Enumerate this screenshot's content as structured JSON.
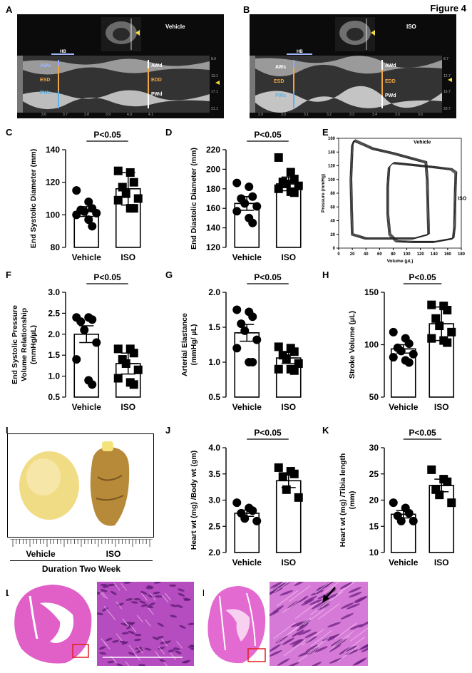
{
  "figure_title": "Figure 4",
  "panels": {
    "A": {
      "letter": "A",
      "condition": "Vehicle",
      "hb": "HB",
      "labels": [
        "AWs",
        "ESD",
        "PWs",
        "AWd",
        "EDD",
        "PWd"
      ],
      "x_ticks": [
        "3.6",
        "3.7",
        "3.8",
        "3.9",
        "4.0",
        "4.1"
      ],
      "depth_ticks": [
        "8.0",
        "13.1",
        "17.1",
        "21.1"
      ]
    },
    "B": {
      "letter": "B",
      "condition": "ISO",
      "hb": "HB",
      "labels": [
        "AWs",
        "ESD",
        "PWs",
        "AWd",
        "EDD",
        "PWd"
      ],
      "x_ticks": [
        "2.9",
        "3.0",
        "3.1",
        "3.2",
        "3.3",
        "3.4",
        "3.5",
        "3.6"
      ],
      "depth_ticks": [
        "8.7",
        "12.7",
        "16.7",
        "20.7"
      ]
    },
    "I": {
      "letter": "I",
      "labels": [
        "Vehicle",
        "ISO"
      ],
      "caption": "Duration Two Week"
    },
    "L": {
      "letter": "L"
    },
    "M": {
      "letter": "M"
    }
  },
  "colors": {
    "vehicle_marker": "#000000",
    "iso_marker": "#000000",
    "echo_bg": "#0b0b0b",
    "aw_label": "#9fb6ff",
    "esd_label": "#f2a640",
    "pw_label": "#58b4e8",
    "he_pink": "#e060c8",
    "he_purple": "#8a2fa6",
    "roi_box": "#e02020"
  },
  "chart_data": [
    {
      "id": "C",
      "type": "scatter",
      "letter": "C",
      "ylabel": "End Systolic Diameter (mm)",
      "categories": [
        "Vehicle",
        "ISO"
      ],
      "ylim": [
        80,
        140
      ],
      "yticks": [
        80,
        100,
        120,
        140
      ],
      "sig": "P<0.05",
      "series": [
        {
          "name": "Vehicle",
          "marker": "circle",
          "mean": 102,
          "err": 3,
          "values": [
            115,
            108,
            104,
            103,
            102,
            101,
            100,
            97,
            93
          ]
        },
        {
          "name": "ISO",
          "marker": "square",
          "mean": 116,
          "err": 10,
          "values": [
            127,
            126,
            120,
            117,
            113,
            110,
            109,
            104,
            104
          ]
        }
      ]
    },
    {
      "id": "D",
      "type": "scatter",
      "letter": "D",
      "ylabel": "End Diastolic Diameter (mm)",
      "categories": [
        "Vehicle",
        "ISO"
      ],
      "ylim": [
        120,
        220
      ],
      "yticks": [
        120,
        140,
        160,
        180,
        200,
        220
      ],
      "sig": "P<0.05",
      "series": [
        {
          "name": "Vehicle",
          "marker": "circle",
          "mean": 165,
          "err": 7,
          "values": [
            186,
            182,
            172,
            170,
            165,
            162,
            157,
            150,
            145
          ]
        },
        {
          "name": "ISO",
          "marker": "square",
          "mean": 185,
          "err": 7,
          "values": [
            212,
            197,
            190,
            187,
            185,
            183,
            180,
            177,
            176
          ]
        }
      ]
    },
    {
      "id": "E",
      "type": "line",
      "letter": "E",
      "xlabel": "Volume (µL)",
      "ylabel": "Pressure (mmHg)",
      "xlim": [
        0,
        180
      ],
      "ylim": [
        0,
        160
      ],
      "xticks": [
        0,
        20,
        40,
        60,
        80,
        100,
        120,
        140,
        160,
        180
      ],
      "yticks": [
        0,
        20,
        40,
        60,
        80,
        100,
        120,
        140,
        160
      ],
      "series": [
        {
          "name": "Vehicle",
          "loops": 5,
          "points": [
            [
              20,
              20
            ],
            [
              19,
              55
            ],
            [
              18,
              100
            ],
            [
              20,
              150
            ],
            [
              23,
              157
            ],
            [
              50,
              145
            ],
            [
              80,
              138
            ],
            [
              110,
              130
            ],
            [
              128,
              125
            ],
            [
              130,
              100
            ],
            [
              131,
              60
            ],
            [
              132,
              20
            ],
            [
              110,
              14
            ],
            [
              70,
              14
            ],
            [
              40,
              14
            ],
            [
              20,
              20
            ]
          ]
        },
        {
          "name": "ISO",
          "loops": 5,
          "points": [
            [
              75,
              20
            ],
            [
              72,
              50
            ],
            [
              72,
              90
            ],
            [
              74,
              118
            ],
            [
              80,
              124
            ],
            [
              110,
              121
            ],
            [
              140,
              118
            ],
            [
              165,
              115
            ],
            [
              172,
              110
            ],
            [
              171,
              80
            ],
            [
              170,
              30
            ],
            [
              168,
              14
            ],
            [
              140,
              9
            ],
            [
              110,
              9
            ],
            [
              85,
              10
            ],
            [
              75,
              20
            ]
          ]
        }
      ]
    },
    {
      "id": "F",
      "type": "scatter",
      "letter": "F",
      "ylabel": "End Systolic Pressure Volume Relationship (mmHg/µL)",
      "ylabel_lines": [
        "End Systolic Pressure",
        "Volume Relationship",
        "(mmHg/µL)"
      ],
      "categories": [
        "Vehicle",
        "ISO"
      ],
      "ylim": [
        0.5,
        3.0
      ],
      "yticks": [
        0.5,
        1.0,
        1.5,
        2.0,
        2.5,
        3.0
      ],
      "sig": "P<0.05",
      "series": [
        {
          "name": "Vehicle",
          "marker": "circle",
          "mean": 2.0,
          "err": 0.2,
          "values": [
            2.4,
            2.4,
            2.35,
            2.3,
            2.1,
            1.8,
            1.4,
            0.9,
            0.8
          ]
        },
        {
          "name": "ISO",
          "marker": "square",
          "mean": 1.3,
          "err": 0.25,
          "values": [
            1.65,
            1.65,
            1.55,
            1.4,
            1.3,
            1.15,
            0.95,
            0.85,
            0.8
          ]
        }
      ]
    },
    {
      "id": "G",
      "type": "scatter",
      "letter": "G",
      "ylabel": "Arterial Elastance (mmHg/ µL)",
      "ylabel_lines": [
        "Arterial Elastance",
        "(mmHg/ µL)"
      ],
      "categories": [
        "Vehicle",
        "ISO"
      ],
      "ylim": [
        0.5,
        2.0
      ],
      "yticks": [
        0.5,
        1.0,
        1.5,
        2.0
      ],
      "sig": "P<0.05",
      "series": [
        {
          "name": "Vehicle",
          "marker": "circle",
          "mean": 1.42,
          "err": 0.12,
          "values": [
            1.75,
            1.72,
            1.65,
            1.55,
            1.45,
            1.32,
            1.2,
            1.0,
            1.0
          ]
        },
        {
          "name": "ISO",
          "marker": "square",
          "mean": 1.06,
          "err": 0.08,
          "values": [
            1.22,
            1.2,
            1.15,
            1.1,
            1.05,
            0.98,
            0.9,
            0.9,
            0.88
          ]
        }
      ]
    },
    {
      "id": "H",
      "type": "scatter",
      "letter": "H",
      "ylabel": "Stroke Volume (µL)",
      "categories": [
        "Vehicle",
        "ISO"
      ],
      "ylim": [
        50,
        150
      ],
      "yticks": [
        50,
        100,
        150
      ],
      "sig": "P<0.05",
      "series": [
        {
          "name": "Vehicle",
          "marker": "circle",
          "mean": 96,
          "err": 4,
          "values": [
            112,
            106,
            101,
            97,
            94,
            91,
            88,
            85,
            83
          ]
        },
        {
          "name": "ISO",
          "marker": "square",
          "mean": 120,
          "err": 16,
          "values": [
            138,
            137,
            133,
            125,
            118,
            112,
            106,
            104,
            102
          ]
        }
      ]
    },
    {
      "id": "J",
      "type": "scatter",
      "letter": "J",
      "ylabel": "Heart wt (mg) /Body wt (gm)",
      "categories": [
        "Vehicle",
        "ISO"
      ],
      "ylim": [
        2.0,
        4.0
      ],
      "yticks": [
        2.0,
        2.5,
        3.0,
        3.5,
        4.0
      ],
      "sig": "P<0.05",
      "series": [
        {
          "name": "Vehicle",
          "marker": "circle",
          "mean": 2.75,
          "err": 0.06,
          "values": [
            2.95,
            2.85,
            2.8,
            2.75,
            2.65,
            2.6
          ]
        },
        {
          "name": "ISO",
          "marker": "square",
          "mean": 3.37,
          "err": 0.13,
          "values": [
            3.62,
            3.55,
            3.5,
            3.45,
            3.2,
            3.05
          ]
        }
      ]
    },
    {
      "id": "K",
      "type": "scatter",
      "letter": "K",
      "ylabel": "Heart wt (mg) /Tibia length (mm)",
      "ylabel_lines": [
        "Heart wt (mg) /Tibia length",
        "(mm)"
      ],
      "categories": [
        "Vehicle",
        "ISO"
      ],
      "ylim": [
        10,
        30
      ],
      "yticks": [
        10,
        15,
        20,
        25,
        30
      ],
      "sig": "P<0.05",
      "series": [
        {
          "name": "Vehicle",
          "marker": "circle",
          "mean": 17.3,
          "err": 0.7,
          "values": [
            19.5,
            18.5,
            17.5,
            17,
            16,
            16
          ]
        },
        {
          "name": "ISO",
          "marker": "square",
          "mean": 22.8,
          "err": 1.2,
          "values": [
            25.8,
            24,
            23.5,
            22,
            21,
            19.5
          ]
        }
      ]
    }
  ]
}
